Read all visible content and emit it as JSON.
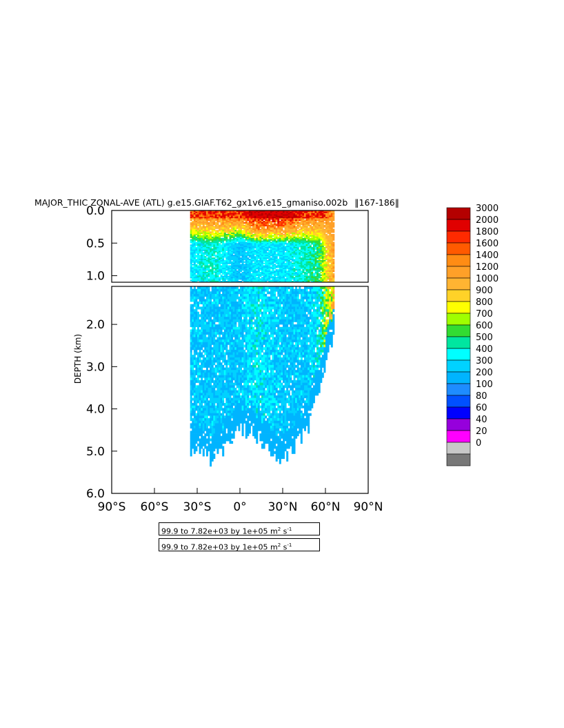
{
  "title": "MAJOR_THIC ZONAL-AVE (ATL) g.e15.GIAF.T62_gx1v6.e15_gmaniso.002b",
  "year_range": "167-186",
  "info_lines": [
    {
      "text": "99.9 to 7.82e+03 by 1e+05 m",
      "sup1": "2",
      "mid": " s",
      "sup2": "-1"
    },
    {
      "text": "99.9 to 7.82e+03 by 1e+05 m",
      "sup1": "2",
      "mid": " s",
      "sup2": "-1"
    }
  ],
  "chart_data": {
    "type": "heatmap",
    "ylabel": "DEPTH (km)",
    "x_ticks": [
      "90°S",
      "60°S",
      "30°S",
      "0°",
      "30°N",
      "60°N",
      "90°N"
    ],
    "x_values": [
      -90,
      -60,
      -30,
      0,
      30,
      60,
      90
    ],
    "xlim": [
      -90,
      90
    ],
    "y_ticks_top": [
      "0.0",
      "0.5",
      "1.0"
    ],
    "y_ticks_top_values": [
      0.0,
      0.5,
      1.0
    ],
    "y_ticks_bottom": [
      "2.0",
      "3.0",
      "4.0",
      "5.0",
      "6.0"
    ],
    "y_ticks_bottom_values": [
      2.0,
      3.0,
      4.0,
      5.0,
      6.0
    ],
    "ylim_top": [
      0.0,
      1.1
    ],
    "ylim_bottom": [
      1.1,
      6.0
    ],
    "colorbar_labels": [
      "3000",
      "2000",
      "1800",
      "1600",
      "1400",
      "1200",
      "1000",
      "900",
      "800",
      "700",
      "600",
      "500",
      "400",
      "300",
      "200",
      "100",
      "80",
      "60",
      "40",
      "20",
      "0"
    ],
    "colorbar_colors": [
      "#b40000",
      "#e00000",
      "#ff2a00",
      "#ff5a00",
      "#ff8c14",
      "#ffa028",
      "#ffb432",
      "#ffd228",
      "#ffff00",
      "#a0ff00",
      "#32dc32",
      "#00e6a0",
      "#00ffff",
      "#00d2ff",
      "#00b4ff",
      "#1e8cff",
      "#0050ff",
      "#0000ff",
      "#9600dc",
      "#ff00ff",
      "#c8c8c8",
      "#787878"
    ],
    "field_profile": [
      {
        "lat": -35,
        "max_depth": 5.1,
        "surface": 1800,
        "upper": 400,
        "deep": 300
      },
      {
        "lat": -20,
        "max_depth": 5.4,
        "surface": 2000,
        "upper": 500,
        "deep": 300
      },
      {
        "lat": 0,
        "max_depth": 4.6,
        "surface": 2000,
        "upper": 300,
        "deep": 300
      },
      {
        "lat": 10,
        "max_depth": 4.8,
        "surface": 3000,
        "upper": 400,
        "deep": 400
      },
      {
        "lat": 30,
        "max_depth": 5.4,
        "surface": 3000,
        "upper": 400,
        "deep": 300
      },
      {
        "lat": 45,
        "max_depth": 4.8,
        "surface": 2000,
        "upper": 500,
        "deep": 300
      },
      {
        "lat": 55,
        "max_depth": 3.8,
        "surface": 2000,
        "upper": 600,
        "deep": 400
      },
      {
        "lat": 65,
        "max_depth": 2.4,
        "surface": 1400,
        "upper": 1200,
        "deep": 1000
      }
    ]
  }
}
